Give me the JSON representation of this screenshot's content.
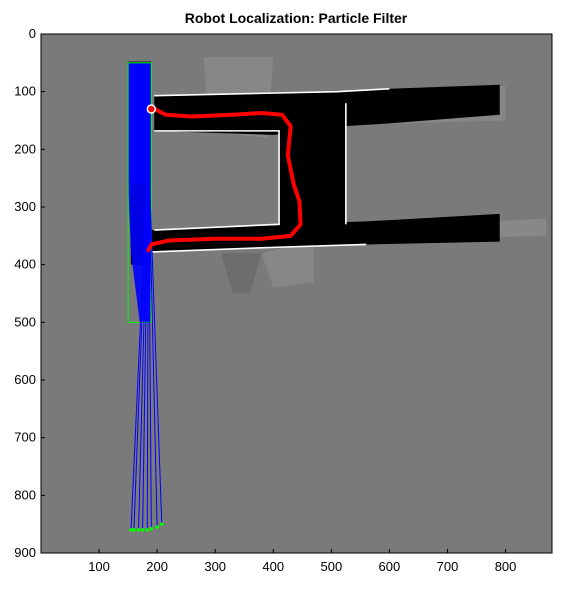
{
  "chart_data": {
    "type": "image-map",
    "title": "Robot Localization: Particle Filter",
    "xlabel": "",
    "ylabel": "",
    "xlim": [
      0,
      880
    ],
    "ylim": [
      900,
      0
    ],
    "x_ticks": [
      100,
      200,
      300,
      400,
      500,
      600,
      700,
      800
    ],
    "y_ticks": [
      0,
      100,
      200,
      300,
      400,
      500,
      600,
      700,
      800,
      900
    ],
    "grid": false,
    "legend": "none",
    "colors": {
      "background_unknown": "#7a7a7a",
      "free_space": "#000000",
      "obstacle_edge": "#ffffff",
      "particles": "#0000ff",
      "particle_outline": "#00ff00",
      "trajectory": "#ff0000",
      "robot_marker": "#ffffff"
    },
    "series": [
      {
        "type": "trajectory",
        "x": [
          195,
          215,
          260,
          330,
          380,
          415,
          430,
          425,
          435,
          445,
          447,
          430,
          380,
          300,
          220,
          190,
          185
        ],
        "y": [
          130,
          140,
          143,
          140,
          137,
          140,
          160,
          210,
          260,
          290,
          330,
          350,
          355,
          355,
          358,
          365,
          375
        ]
      },
      {
        "type": "robot_marker",
        "x": [
          190
        ],
        "y": [
          130
        ]
      },
      {
        "type": "particle_rays",
        "x_start": [
          185,
          185,
          185,
          185,
          185,
          185,
          185,
          185
        ],
        "y_start": [
          200,
          200,
          200,
          200,
          200,
          200,
          200,
          200
        ],
        "x_end": [
          155,
          160,
          168,
          175,
          183,
          190,
          200,
          208
        ],
        "y_end": [
          860,
          860,
          860,
          860,
          860,
          858,
          855,
          850
        ]
      }
    ]
  }
}
